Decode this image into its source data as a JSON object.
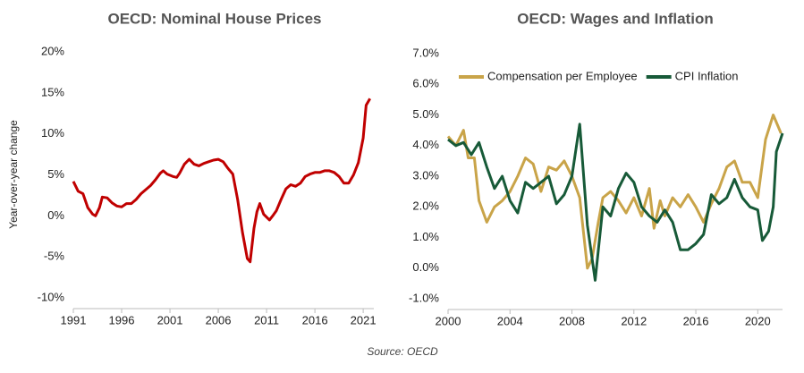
{
  "chart_data": [
    {
      "type": "line",
      "title": "OECD: Nominal House Prices",
      "ylabel": "Year-over-year change",
      "xlim": [
        1991,
        2022.1
      ],
      "xticks": [
        1991,
        1996,
        2001,
        2006,
        2011,
        2016,
        2021
      ],
      "ylim": [
        -10,
        20
      ],
      "yticks": [
        {
          "value": -10,
          "label": "-10%"
        },
        {
          "value": -5,
          "label": "-5%"
        },
        {
          "value": 0,
          "label": "0%"
        },
        {
          "value": 5,
          "label": "5%"
        },
        {
          "value": 10,
          "label": "10%"
        },
        {
          "value": 15,
          "label": "15%"
        },
        {
          "value": 20,
          "label": "20%"
        }
      ],
      "grid": false,
      "series": [
        {
          "color": "#c00000",
          "x": [
            1991,
            1991.5,
            1992,
            1992.5,
            1993,
            1993.3,
            1993.7,
            1994,
            1994.5,
            1995,
            1995.5,
            1996,
            1996.5,
            1997,
            1997.5,
            1998,
            1998.5,
            1999,
            1999.5,
            2000,
            2000.3,
            2000.7,
            2001.3,
            2001.7,
            2002,
            2002.5,
            2003,
            2003.5,
            2004,
            2004.5,
            2005,
            2005.5,
            2006,
            2006.5,
            2007,
            2007.5,
            2008,
            2008.5,
            2009,
            2009.3,
            2009.7,
            2010,
            2010.3,
            2010.7,
            2011.3,
            2011.7,
            2012,
            2012.5,
            2013,
            2013.5,
            2014,
            2014.5,
            2015,
            2015.5,
            2016,
            2016.5,
            2017,
            2017.5,
            2018,
            2018.5,
            2019,
            2019.5,
            2020,
            2020.5,
            2021,
            2021.3,
            2021.7
          ],
          "values": [
            4.2,
            3,
            2.7,
            1,
            0.2,
            0,
            1,
            2.3,
            2.2,
            1.6,
            1.2,
            1.1,
            1.5,
            1.5,
            2,
            2.7,
            3.2,
            3.7,
            4.4,
            5.2,
            5.5,
            5.1,
            4.8,
            4.7,
            5.2,
            6.3,
            6.9,
            6.3,
            6.1,
            6.4,
            6.6,
            6.8,
            6.9,
            6.6,
            5.8,
            5.1,
            2,
            -2,
            -5.2,
            -5.6,
            -1.5,
            0.5,
            1.5,
            0.2,
            -0.5,
            0.1,
            0.6,
            2,
            3.3,
            3.8,
            3.6,
            4,
            4.8,
            5.1,
            5.3,
            5.3,
            5.5,
            5.5,
            5.3,
            4.8,
            4,
            4,
            5,
            6.5,
            9.5,
            13.5,
            14.3
          ]
        }
      ]
    },
    {
      "type": "line",
      "title": "OECD: Wages and Inflation",
      "xlim": [
        2000,
        2021.6
      ],
      "xticks": [
        2000,
        2004,
        2008,
        2012,
        2016,
        2020
      ],
      "ylim": [
        -1,
        7
      ],
      "yticks": [
        {
          "value": -1,
          "label": "-1.0%"
        },
        {
          "value": 0,
          "label": "0.0%"
        },
        {
          "value": 1,
          "label": "1.0%"
        },
        {
          "value": 2,
          "label": "2.0%"
        },
        {
          "value": 3,
          "label": "3.0%"
        },
        {
          "value": 4,
          "label": "4.0%"
        },
        {
          "value": 5,
          "label": "5.0%"
        },
        {
          "value": 6,
          "label": "6.0%"
        },
        {
          "value": 7,
          "label": "7.0%"
        }
      ],
      "grid": false,
      "legend": "top",
      "series": [
        {
          "name": "Compensation per Employee",
          "color": "#c9a449",
          "x": [
            2000,
            2000.5,
            2001,
            2001.3,
            2001.7,
            2002,
            2002.5,
            2003,
            2003.5,
            2004,
            2004.5,
            2005,
            2005.5,
            2006,
            2006.5,
            2007,
            2007.5,
            2008,
            2008.5,
            2009,
            2009.3,
            2009.7,
            2010,
            2010.5,
            2011,
            2011.5,
            2012,
            2012.5,
            2013,
            2013.3,
            2013.7,
            2014,
            2014.5,
            2015,
            2015.5,
            2016,
            2016.5,
            2017,
            2017.5,
            2018,
            2018.5,
            2019,
            2019.5,
            2020,
            2020.5,
            2021,
            2021.5
          ],
          "values": [
            4.3,
            4,
            4.5,
            3.6,
            3.6,
            2.2,
            1.5,
            2,
            2.2,
            2.5,
            3,
            3.6,
            3.4,
            2.5,
            3.3,
            3.2,
            3.5,
            3,
            2.3,
            0,
            0.3,
            1.5,
            2.3,
            2.5,
            2.2,
            1.8,
            2.3,
            1.7,
            2.6,
            1.3,
            2.2,
            1.7,
            2.3,
            2,
            2.4,
            2,
            1.5,
            2.1,
            2.6,
            3.3,
            3.5,
            2.8,
            2.8,
            2.3,
            4.2,
            5,
            4.4
          ]
        },
        {
          "name": "CPI Inflation",
          "color": "#175a38",
          "x": [
            2000,
            2000.5,
            2001,
            2001.5,
            2002,
            2002.5,
            2003,
            2003.5,
            2004,
            2004.5,
            2005,
            2005.5,
            2006,
            2006.5,
            2007,
            2007.5,
            2008,
            2008.5,
            2009,
            2009.5,
            2010,
            2010.5,
            2011,
            2011.5,
            2012,
            2012.5,
            2013,
            2013.5,
            2014,
            2014.5,
            2015,
            2015.5,
            2016,
            2016.5,
            2017,
            2017.5,
            2018,
            2018.5,
            2019,
            2019.5,
            2020,
            2020.3,
            2020.7,
            2021,
            2021.2,
            2021.6
          ],
          "values": [
            4.2,
            4,
            4.1,
            3.7,
            4.1,
            3.3,
            2.6,
            3,
            2.2,
            1.8,
            2.8,
            2.6,
            2.8,
            3,
            2.1,
            2.4,
            3,
            4.7,
            1.4,
            -0.4,
            2,
            1.7,
            2.6,
            3.1,
            2.8,
            2,
            1.7,
            1.5,
            1.9,
            1.5,
            0.6,
            0.6,
            0.8,
            1.1,
            2.4,
            2.1,
            2.3,
            2.9,
            2.3,
            2,
            1.9,
            0.9,
            1.2,
            2,
            3.8,
            4.4
          ]
        }
      ]
    }
  ],
  "source": "Source: OECD"
}
